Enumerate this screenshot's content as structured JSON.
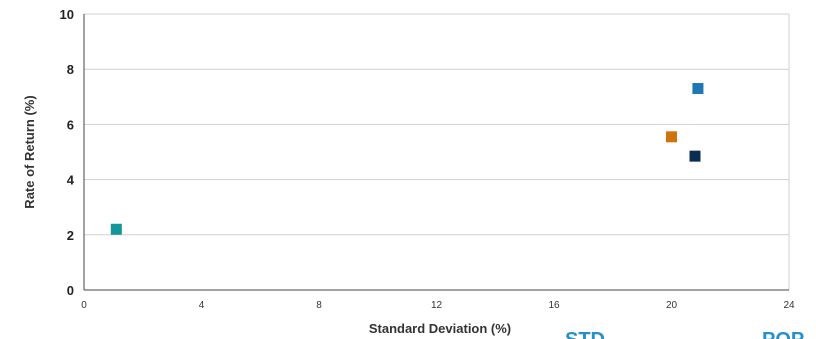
{
  "chart_data": {
    "type": "scatter",
    "title": "",
    "xlabel": "Standard Deviation (%)",
    "ylabel": "Rate of Return (%)",
    "xlim": [
      0,
      24
    ],
    "ylim": [
      0,
      10
    ],
    "x_ticks": [
      "0",
      "4",
      "8",
      "12",
      "16",
      "20",
      "24"
    ],
    "y_ticks": [
      "0",
      "2",
      "4",
      "6",
      "8",
      "10"
    ],
    "grid": true,
    "legend": "none",
    "series": [
      {
        "x": [
          1.1
        ],
        "y": [
          2.2
        ],
        "color": "#13979b"
      },
      {
        "x": [
          20.0
        ],
        "y": [
          5.55
        ],
        "color": "#d1730c"
      },
      {
        "x": [
          20.8
        ],
        "y": [
          4.85
        ],
        "color": "#0c2d52"
      },
      {
        "x": [
          20.9
        ],
        "y": [
          7.3
        ],
        "color": "#1f77b4"
      }
    ],
    "clipped_labels": [
      "STD",
      "POP"
    ]
  },
  "colors": {
    "grid": "#d0d0d0",
    "axis": "#444444",
    "corner_label": "#2a8fc9"
  }
}
